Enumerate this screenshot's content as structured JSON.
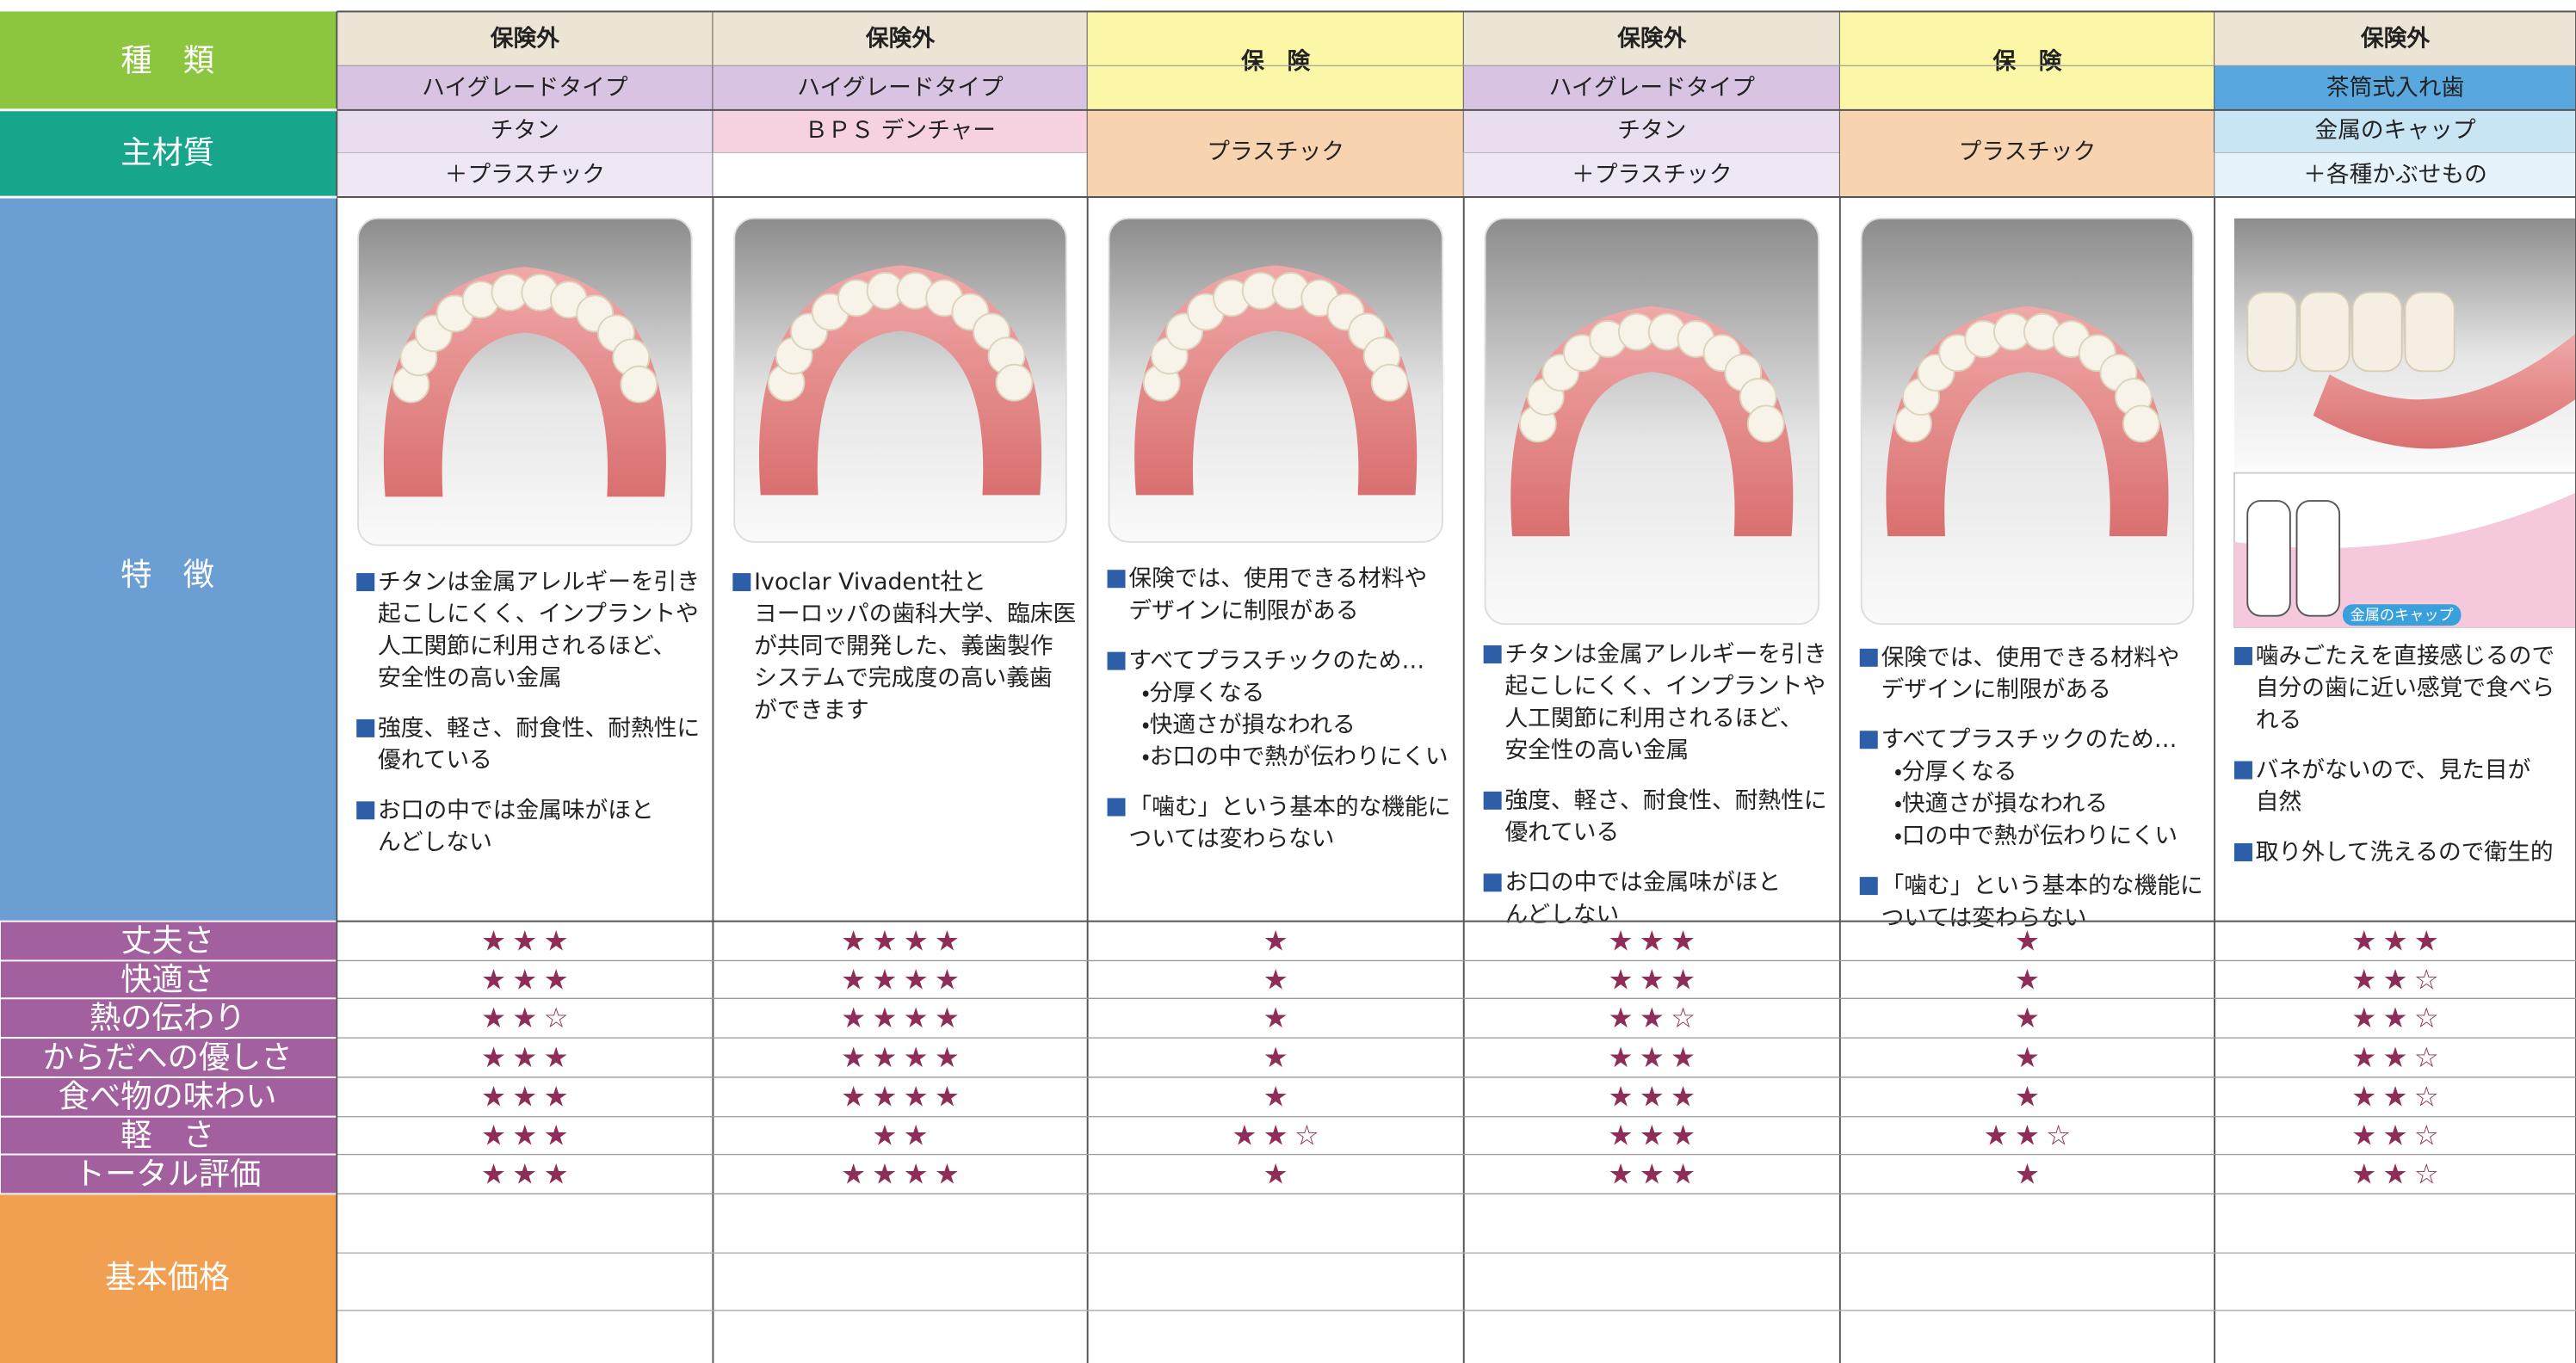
{
  "row_labels": {
    "type": "種　類",
    "material": "主材質",
    "features": "特　徴",
    "price": "基本価格"
  },
  "criteria": [
    "丈夫さ",
    "快適さ",
    "熱の伝わり",
    "からだへの優しさ",
    "食べ物の味わい",
    "軽　さ",
    "トータル評価"
  ],
  "columns": [
    {
      "insurance": "保険外",
      "category": "ハイグレードタイプ",
      "material": [
        "チタン",
        "＋プラスチック"
      ],
      "features": [
        [
          "チタンは金属アレルギーを引き",
          "起こしにくく、インプラントや",
          "人工関節に利用されるほど、",
          "安全性の高い金属"
        ],
        [
          "強度、軽さ、耐食性、耐熱性に",
          "優れている"
        ],
        [
          "お口の中では金属味がほと",
          "んどしない"
        ]
      ],
      "ratings": [
        3,
        3,
        2.5,
        3,
        3,
        3,
        3
      ]
    },
    {
      "insurance": "保険外",
      "category": "ハイグレードタイプ",
      "material": [
        "ＢＰＳ デンチャー",
        null
      ],
      "features": [
        [
          "Ivoclar Vivadent社と",
          "ヨーロッパの歯科大学、臨床医",
          "が共同で開発した、義歯製作",
          "システムで完成度の高い義歯",
          "ができます"
        ]
      ],
      "ratings": [
        4,
        4,
        4,
        4,
        4,
        2,
        4
      ]
    },
    {
      "insurance": "保　険",
      "category": null,
      "material": [
        "プラスチック"
      ],
      "features": [
        [
          "保険では、使用できる材料や",
          "デザインに制限がある"
        ],
        [
          "すべてプラスチックのため…",
          "・分厚くなる",
          "・快適さが損なわれる",
          "・お口の中で熱が伝わりにくい"
        ],
        [
          "「噛む」という基本的な機能に",
          "ついては変わらない"
        ]
      ],
      "ratings": [
        1,
        1,
        1,
        1,
        1,
        2.5,
        1
      ]
    },
    {
      "insurance": "保険外",
      "category": "ハイグレードタイプ",
      "material": [
        "チタン",
        "＋プラスチック"
      ],
      "features": [
        [
          "チタンは金属アレルギーを引き",
          "起こしにくく、インプラントや",
          "人工関節に利用されるほど、",
          "安全性の高い金属"
        ],
        [
          "強度、軽さ、耐食性、耐熱性に",
          "優れている"
        ],
        [
          "お口の中では金属味がほと",
          "んどしない"
        ]
      ],
      "ratings": [
        3,
        3,
        2.5,
        3,
        3,
        3,
        3
      ]
    },
    {
      "insurance": "保　険",
      "category": null,
      "material": [
        "プラスチック"
      ],
      "features": [
        [
          "保険では、使用できる材料や",
          "デザインに制限がある"
        ],
        [
          "すべてプラスチックのため…",
          "・分厚くなる",
          "・快適さが損なわれる",
          "・口の中で熱が伝わりにくい"
        ],
        [
          "「噛む」という基本的な機能に",
          "ついては変わらない"
        ]
      ],
      "ratings": [
        1,
        1,
        1,
        1,
        1,
        2.5,
        1
      ]
    },
    {
      "insurance": "保険外",
      "category": "茶筒式入れ歯",
      "material": [
        "金属のキャップ",
        "＋各種かぶせもの"
      ],
      "image_label": "金属のキャップ",
      "features": [
        [
          "噛みごたえを直接感じるので",
          "自分の歯に近い感覚で食べら",
          "れる"
        ],
        [
          "バネがないので、見た目が",
          "自然"
        ],
        [
          "取り外して洗えるので衛生的"
        ]
      ],
      "ratings": [
        3,
        2.5,
        2.5,
        2.5,
        2.5,
        2.5,
        2.5
      ]
    }
  ]
}
